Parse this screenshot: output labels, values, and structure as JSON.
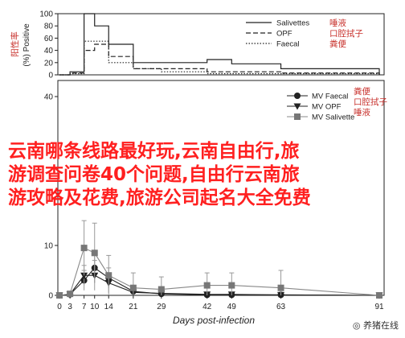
{
  "chart_data": [
    {
      "type": "line",
      "ylabel": "(%) Positive",
      "ylabel_annotation": "阳性率",
      "yticks": [
        "0",
        "20",
        "40",
        "60",
        "80",
        "100"
      ],
      "ylim": [
        0,
        100
      ],
      "series": [
        {
          "name": "Salivettes",
          "annotation": "唾液",
          "style": "solid",
          "x": [
            0,
            3,
            7,
            10,
            14,
            21,
            29,
            42,
            49,
            63,
            91
          ],
          "y": [
            0,
            5,
            100,
            80,
            50,
            20,
            20,
            25,
            18,
            10,
            0
          ]
        },
        {
          "name": "OPF",
          "annotation": "口腔拭子",
          "style": "dashed",
          "x": [
            0,
            3,
            7,
            10,
            14,
            21,
            29,
            42,
            49,
            63,
            91
          ],
          "y": [
            0,
            3,
            40,
            50,
            30,
            10,
            10,
            5,
            5,
            3,
            0
          ]
        },
        {
          "name": "Faecal",
          "annotation": "粪便",
          "style": "dotted",
          "x": [
            0,
            3,
            7,
            10,
            14,
            21,
            29,
            42,
            49,
            63,
            91
          ],
          "y": [
            0,
            2,
            55,
            55,
            20,
            10,
            5,
            2,
            2,
            2,
            0
          ]
        }
      ]
    },
    {
      "type": "line",
      "xlabel": "Days post-infection",
      "xticks": [
        "0",
        "3",
        "7",
        "10",
        "14",
        "21",
        "29",
        "42",
        "49",
        "63",
        "91"
      ],
      "yticks": [
        "0",
        "10",
        "40"
      ],
      "series": [
        {
          "name": "MV Faecal",
          "annotation": "粪便",
          "marker": "circle",
          "x": [
            0,
            3,
            7,
            10,
            14,
            21,
            29,
            42,
            49,
            63,
            91
          ],
          "y": [
            0,
            0.2,
            3,
            5.5,
            3.5,
            0.8,
            0.3,
            0.1,
            0.1,
            0.1,
            0
          ],
          "err": [
            0,
            0.3,
            2,
            3,
            2,
            1,
            0.5,
            0.2,
            0.2,
            0.2,
            0
          ]
        },
        {
          "name": "MV OPF",
          "annotation": "口腔拭子",
          "marker": "triangle-down",
          "x": [
            0,
            3,
            7,
            10,
            14,
            21,
            29,
            42,
            49,
            63,
            91
          ],
          "y": [
            0,
            0.2,
            4,
            4,
            2.5,
            0.6,
            0.4,
            0.2,
            0.2,
            0.1,
            0
          ],
          "err": [
            0,
            0.3,
            2,
            3,
            2,
            1,
            0.5,
            0.3,
            0.3,
            0.2,
            0
          ]
        },
        {
          "name": "MV Salivette",
          "annotation": "唾液",
          "marker": "square",
          "x": [
            0,
            3,
            7,
            10,
            14,
            21,
            29,
            42,
            49,
            63,
            91
          ],
          "y": [
            0,
            0.3,
            9.5,
            8.5,
            4,
            1.5,
            1.2,
            2,
            2,
            1.5,
            0
          ],
          "err": [
            0,
            0.5,
            5.5,
            6,
            4,
            3,
            2.5,
            2.5,
            2.5,
            3.5,
            0
          ]
        }
      ]
    }
  ],
  "overlay": {
    "line1": "云南哪条线路最好玩,云南自由行,旅",
    "line2": "游调查问卷40个问题,自由行云南旅",
    "line3": "游攻略及花费,旅游公司起名大全免费"
  },
  "watermark": "养猪在线"
}
